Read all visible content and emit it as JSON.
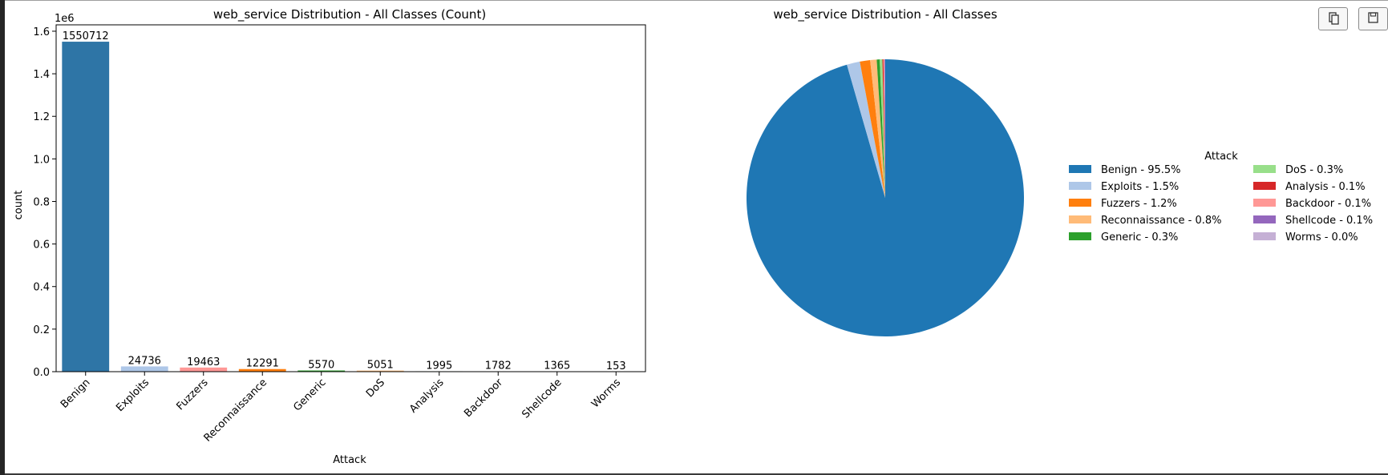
{
  "toolbar": {
    "copy_icon": "copy-icon",
    "save_icon": "save-icon"
  },
  "chart_data": [
    {
      "type": "bar",
      "title": "web_service Distribution - All Classes (Count)",
      "xlabel": "Attack",
      "ylabel": "count",
      "y_offset_label": "1e6",
      "categories": [
        "Benign",
        "Exploits",
        "Fuzzers",
        "Reconnaissance",
        "Generic",
        "DoS",
        "Analysis",
        "Backdoor",
        "Shellcode",
        "Worms"
      ],
      "values": [
        1550712,
        24736,
        19463,
        12291,
        5570,
        5051,
        1995,
        1782,
        1365,
        153
      ],
      "data_labels": [
        "1550712",
        "24736",
        "19463",
        "12291",
        "5570",
        "5051",
        "1995",
        "1782",
        "1365",
        "153"
      ],
      "colors": [
        "#2e75a6",
        "#aec7e8",
        "#ff9896",
        "#ff7f0e",
        "#2ca02c",
        "#ffbb78",
        "#98df8a",
        "#ff9896",
        "#9467bd",
        "#c5b0d5"
      ],
      "yticks": [
        0,
        0.2,
        0.4,
        0.6,
        0.8,
        1.0,
        1.2,
        1.4,
        1.6
      ],
      "ytick_labels": [
        "0.0",
        "0.2",
        "0.4",
        "0.6",
        "0.8",
        "1.0",
        "1.2",
        "1.4",
        "1.6"
      ],
      "ylim": [
        0,
        1.63
      ],
      "y_unit_scale": 1000000,
      "grid": false
    },
    {
      "type": "pie",
      "title": "web_service Distribution - All Classes",
      "legend_title": "Attack",
      "legend_placement": "right",
      "labels": [
        "Benign",
        "Exploits",
        "Fuzzers",
        "Reconnaissance",
        "Generic",
        "DoS",
        "Analysis",
        "Backdoor",
        "Shellcode",
        "Worms"
      ],
      "values": [
        1550712,
        24736,
        19463,
        12291,
        5570,
        5051,
        1995,
        1782,
        1365,
        153
      ],
      "legend_entries": [
        "Benign - 95.5%",
        "Exploits - 1.5%",
        "Fuzzers - 1.2%",
        "Reconnaissance - 0.8%",
        "Generic - 0.3%",
        "DoS - 0.3%",
        "Analysis - 0.1%",
        "Backdoor - 0.1%",
        "Shellcode - 0.1%",
        "Worms - 0.0%"
      ],
      "colors": [
        "#1f77b4",
        "#aec7e8",
        "#ff7f0e",
        "#ffbb78",
        "#2ca02c",
        "#98df8a",
        "#d62728",
        "#ff9896",
        "#9467bd",
        "#c5b0d5"
      ],
      "start_angle_deg": 90,
      "direction": "clockwise"
    }
  ]
}
